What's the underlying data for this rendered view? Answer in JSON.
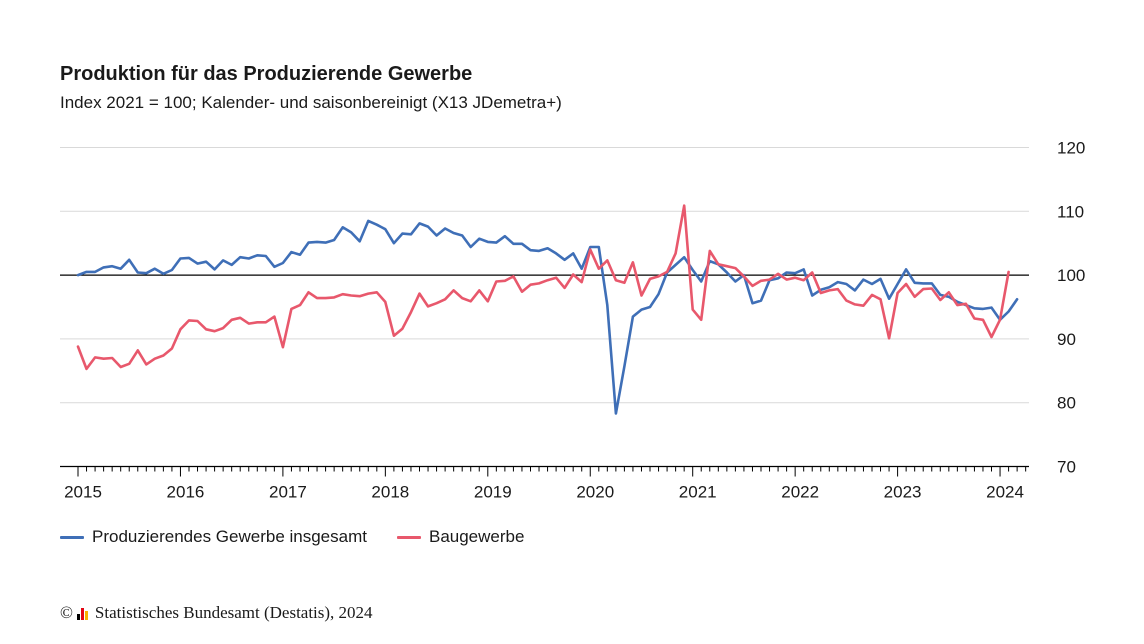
{
  "header": {
    "title": "Produktion für das Produzierende Gewerbe",
    "subtitle": "Index 2021 = 100; Kalender- und saisonbereinigt (X13 JDemetra+)"
  },
  "footer": {
    "copyright_symbol": "©",
    "text": "Statistisches Bundesamt (Destatis), 2024"
  },
  "colors": {
    "series_blue": "#3f6fb7",
    "series_red": "#e8586c",
    "grid": "#d9d9d9",
    "reference_line": "#000000"
  },
  "chart_data": {
    "type": "line",
    "ylim": [
      70,
      120
    ],
    "yticks": [
      70,
      80,
      90,
      100,
      110,
      120
    ],
    "xticks": [
      "2015",
      "2016",
      "2017",
      "2018",
      "2019",
      "2020",
      "2021",
      "2022",
      "2023",
      "2024"
    ],
    "x_start": "2015-01",
    "reference_value": 100,
    "grid": true,
    "legend_position": "bottom-left",
    "series": [
      {
        "name": "Produzierendes Gewerbe insgesamt",
        "color": "#3f6fb7",
        "values": [
          100.0,
          100.5,
          100.5,
          101.2,
          101.4,
          101.0,
          102.4,
          100.4,
          100.3,
          101.0,
          100.2,
          100.8,
          102.6,
          102.7,
          101.8,
          102.1,
          100.9,
          102.3,
          101.6,
          102.8,
          102.6,
          103.1,
          103.0,
          101.3,
          101.9,
          103.6,
          103.2,
          105.1,
          105.2,
          105.1,
          105.5,
          107.5,
          106.7,
          105.3,
          108.5,
          107.9,
          107.2,
          105.0,
          106.5,
          106.4,
          108.1,
          107.6,
          106.2,
          107.3,
          106.6,
          106.2,
          104.4,
          105.7,
          105.2,
          105.1,
          106.1,
          104.9,
          104.9,
          103.9,
          103.8,
          104.2,
          103.4,
          102.4,
          103.4,
          101.0,
          104.4,
          104.4,
          95.3,
          78.3,
          85.7,
          93.5,
          94.6,
          95.0,
          97.0,
          100.4,
          101.6,
          102.8,
          100.8,
          99.0,
          102.2,
          101.7,
          100.4,
          99.0,
          100.0,
          95.6,
          96.0,
          99.2,
          99.5,
          100.4,
          100.3,
          100.9,
          96.8,
          97.7,
          98.1,
          98.9,
          98.6,
          97.6,
          99.3,
          98.6,
          99.4,
          96.3,
          98.6,
          100.9,
          98.8,
          98.7,
          98.7,
          96.9,
          96.6,
          95.8,
          95.3,
          94.8,
          94.7,
          94.9,
          93.0,
          94.3,
          96.2
        ]
      },
      {
        "name": "Baugewerbe",
        "color": "#e8586c",
        "values": [
          88.8,
          85.3,
          87.1,
          86.9,
          87.0,
          85.6,
          86.1,
          88.2,
          86.0,
          86.9,
          87.4,
          88.5,
          91.5,
          92.9,
          92.8,
          91.5,
          91.2,
          91.7,
          93.0,
          93.3,
          92.4,
          92.6,
          92.6,
          93.5,
          88.7,
          94.7,
          95.3,
          97.3,
          96.4,
          96.4,
          96.5,
          97.0,
          96.8,
          96.7,
          97.1,
          97.3,
          95.8,
          90.5,
          91.6,
          94.2,
          97.1,
          95.1,
          95.6,
          96.2,
          97.6,
          96.4,
          95.9,
          97.6,
          95.9,
          99.0,
          99.1,
          99.8,
          97.4,
          98.5,
          98.7,
          99.2,
          99.6,
          98.0,
          100.1,
          98.9,
          104.0,
          101.0,
          102.3,
          99.2,
          98.8,
          102.0,
          96.8,
          99.4,
          99.8,
          100.5,
          103.4,
          110.9,
          94.6,
          93.0,
          103.8,
          101.7,
          101.4,
          101.1,
          99.8,
          98.3,
          99.1,
          99.3,
          100.2,
          99.3,
          99.6,
          99.2,
          100.4,
          97.2,
          97.6,
          97.8,
          96.0,
          95.4,
          95.2,
          96.9,
          96.2,
          90.1,
          97.2,
          98.6,
          96.6,
          97.8,
          97.9,
          96.1,
          97.3,
          95.3,
          95.5,
          93.2,
          93.0,
          90.3,
          93.0,
          100.5
        ]
      }
    ]
  }
}
